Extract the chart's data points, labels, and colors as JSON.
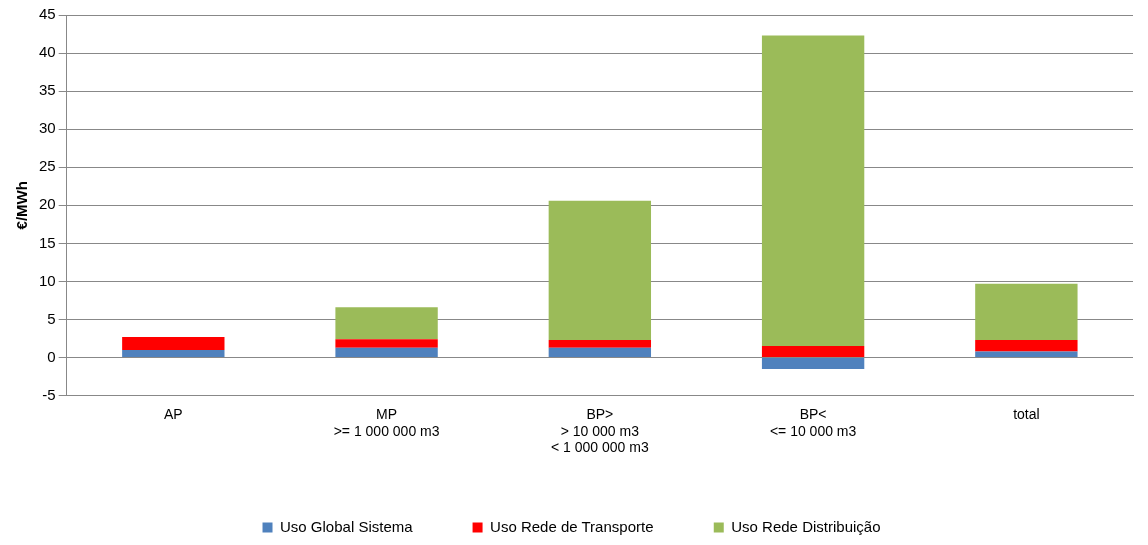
{
  "chart_data": {
    "type": "bar",
    "stacked": true,
    "ylabel": "€/MWh",
    "categories": [
      "AP",
      "MP\n>= 1 000 000 m3",
      "BP>\n> 10 000 m3\n< 1 000 000 m3",
      "BP<\n<= 10 000 m3",
      "total"
    ],
    "series": [
      {
        "name": "Uso Global Sistema",
        "color": "#4f81bd",
        "values": [
          1.0,
          1.3,
          1.3,
          -1.5,
          0.8
        ]
      },
      {
        "name": "Uso Rede de Transporte",
        "color": "#ff0000",
        "values": [
          1.7,
          1.1,
          1.0,
          1.5,
          1.5
        ]
      },
      {
        "name": "Uso Rede Distribuição",
        "color": "#9bbb59",
        "values": [
          0,
          4.2,
          18.3,
          40.8,
          7.4
        ]
      }
    ],
    "ylim": [
      -5,
      45
    ],
    "yticks": [
      -5,
      0,
      5,
      10,
      15,
      20,
      25,
      30,
      35,
      40,
      45
    ],
    "grid": "y",
    "legend": "bottom"
  }
}
